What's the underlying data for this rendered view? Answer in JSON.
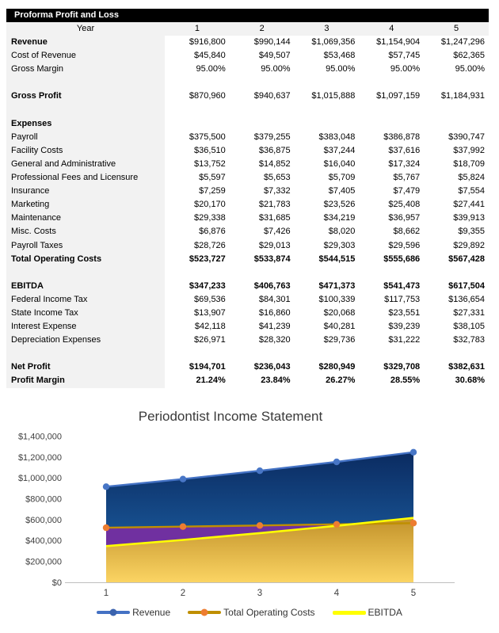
{
  "report": {
    "title": "Proforma Profit and Loss",
    "header": {
      "year_label": "Year",
      "years": [
        "1",
        "2",
        "3",
        "4",
        "5"
      ]
    },
    "rows": [
      {
        "label": "Revenue",
        "values": [
          "$916,800",
          "$990,144",
          "$1,069,356",
          "$1,154,904",
          "$1,247,296"
        ],
        "bold_label": true
      },
      {
        "label": "Cost of Revenue",
        "values": [
          "$45,840",
          "$49,507",
          "$53,468",
          "$57,745",
          "$62,365"
        ]
      },
      {
        "label": "Gross Margin",
        "values": [
          "95.00%",
          "95.00%",
          "95.00%",
          "95.00%",
          "95.00%"
        ]
      },
      {
        "label": "",
        "values": [
          "",
          "",
          "",
          "",
          ""
        ]
      },
      {
        "label": "Gross Profit",
        "values": [
          "$870,960",
          "$940,637",
          "$1,015,888",
          "$1,097,159",
          "$1,184,931"
        ],
        "bold_label": true
      },
      {
        "label": "",
        "values": [
          "",
          "",
          "",
          "",
          ""
        ]
      },
      {
        "label": "Expenses",
        "values": [
          "",
          "",
          "",
          "",
          ""
        ],
        "bold_label": true
      },
      {
        "label": "Payroll",
        "values": [
          "$375,500",
          "$379,255",
          "$383,048",
          "$386,878",
          "$390,747"
        ]
      },
      {
        "label": "Facility Costs",
        "values": [
          "$36,510",
          "$36,875",
          "$37,244",
          "$37,616",
          "$37,992"
        ]
      },
      {
        "label": "General and Administrative",
        "values": [
          "$13,752",
          "$14,852",
          "$16,040",
          "$17,324",
          "$18,709"
        ]
      },
      {
        "label": "Professional Fees and Licensure",
        "values": [
          "$5,597",
          "$5,653",
          "$5,709",
          "$5,767",
          "$5,824"
        ]
      },
      {
        "label": "Insurance",
        "values": [
          "$7,259",
          "$7,332",
          "$7,405",
          "$7,479",
          "$7,554"
        ]
      },
      {
        "label": "Marketing",
        "values": [
          "$20,170",
          "$21,783",
          "$23,526",
          "$25,408",
          "$27,441"
        ]
      },
      {
        "label": "Maintenance",
        "values": [
          "$29,338",
          "$31,685",
          "$34,219",
          "$36,957",
          "$39,913"
        ]
      },
      {
        "label": "Misc. Costs",
        "values": [
          "$6,876",
          "$7,426",
          "$8,020",
          "$8,662",
          "$9,355"
        ]
      },
      {
        "label": "Payroll Taxes",
        "values": [
          "$28,726",
          "$29,013",
          "$29,303",
          "$29,596",
          "$29,892"
        ]
      },
      {
        "label": "Total Operating Costs",
        "values": [
          "$523,727",
          "$533,874",
          "$544,515",
          "$555,686",
          "$567,428"
        ],
        "bold_label": true,
        "bold_values": true
      },
      {
        "label": "",
        "values": [
          "",
          "",
          "",
          "",
          ""
        ]
      },
      {
        "label": "EBITDA",
        "values": [
          "$347,233",
          "$406,763",
          "$471,373",
          "$541,473",
          "$617,504"
        ],
        "bold_label": true,
        "bold_values": true
      },
      {
        "label": "Federal Income Tax",
        "values": [
          "$69,536",
          "$84,301",
          "$100,339",
          "$117,753",
          "$136,654"
        ]
      },
      {
        "label": "State Income Tax",
        "values": [
          "$13,907",
          "$16,860",
          "$20,068",
          "$23,551",
          "$27,331"
        ]
      },
      {
        "label": "Interest Expense",
        "values": [
          "$42,118",
          "$41,239",
          "$40,281",
          "$39,239",
          "$38,105"
        ]
      },
      {
        "label": "Depreciation Expenses",
        "values": [
          "$26,971",
          "$28,320",
          "$29,736",
          "$31,222",
          "$32,783"
        ]
      },
      {
        "label": "",
        "values": [
          "",
          "",
          "",
          "",
          ""
        ]
      },
      {
        "label": "Net Profit",
        "values": [
          "$194,701",
          "$236,043",
          "$280,949",
          "$329,708",
          "$382,631"
        ],
        "bold_label": true,
        "bold_values": true
      },
      {
        "label": "Profit Margin",
        "values": [
          "21.24%",
          "23.84%",
          "26.27%",
          "28.55%",
          "30.68%"
        ],
        "bold_label": true,
        "bold_values": true
      }
    ]
  },
  "chart": {
    "title": "Periodontist Income Statement",
    "y_tick_labels": [
      "$1,400,000",
      "$1,200,000",
      "$1,000,000",
      "$800,000",
      "$600,000",
      "$400,000",
      "$200,000",
      "$0"
    ],
    "x_tick_labels": [
      "1",
      "2",
      "3",
      "4",
      "5"
    ],
    "legend": [
      {
        "label": "Revenue",
        "line_color": "#4472C4",
        "marker_color": "#3B63AE"
      },
      {
        "label": "Total Operating Costs",
        "line_color": "#BF8F00",
        "marker_color": "#ED7D31"
      },
      {
        "label": "EBITDA",
        "line_color": "#FFFF00",
        "marker_color": null
      }
    ]
  },
  "chart_data": {
    "type": "area",
    "title": "Periodontist Income Statement",
    "x": [
      1,
      2,
      3,
      4,
      5
    ],
    "series": [
      {
        "name": "Revenue",
        "values": [
          916800,
          990144,
          1069356,
          1154904,
          1247296
        ],
        "line_color": "#4472C4",
        "fill": "blue-gradient"
      },
      {
        "name": "Total Operating Costs",
        "values": [
          523727,
          533874,
          544515,
          555686,
          567428
        ],
        "line_color": "#BF8F00",
        "marker_color": "#ED7D31",
        "fill": "#7030A0"
      },
      {
        "name": "EBITDA",
        "values": [
          347233,
          406763,
          471373,
          541473,
          617504
        ],
        "line_color": "#FFFF00",
        "fill": "gold-gradient"
      }
    ],
    "ylim": [
      0,
      1400000
    ],
    "y_tick_step": 200000,
    "grid": false,
    "legend_position": "bottom"
  },
  "colors": {
    "header_bar_bg": "#000000",
    "header_bar_text": "#FFFFFF",
    "label_column_bg": "#F2F2F2",
    "revenue_area_top": "#0B2B61",
    "revenue_area_bottom": "#1F69AF",
    "operating_costs_area": "#7030A0",
    "ebitda_area_top": "#C2922A",
    "ebitda_area_bottom": "#FBD463",
    "revenue_line": "#4472C4",
    "operating_costs_line": "#BF8F00",
    "operating_costs_marker": "#ED7D31",
    "ebitda_line": "#FFFF00",
    "axis_line": "#BFBFBF",
    "axis_text": "#404040"
  }
}
